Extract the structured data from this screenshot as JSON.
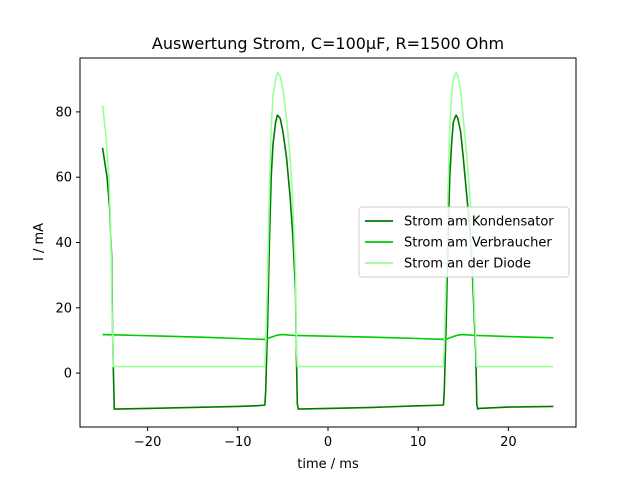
{
  "chart_data": {
    "type": "line",
    "title": "Auswertung Strom, C=100µF, R=1500 Ohm",
    "xlabel": "time / ms",
    "ylabel": "I / mA",
    "xlim": [
      -27.5,
      27.5
    ],
    "ylim": [
      -16.5,
      96.5
    ],
    "xticks": [
      -20,
      -10,
      0,
      10,
      20
    ],
    "yticks": [
      0,
      20,
      40,
      60,
      80
    ],
    "grid": false,
    "legend": "center-right",
    "series": [
      {
        "name": "Strom am Kondensator",
        "color": "#007a00",
        "x": [
          -25,
          -24.5,
          -24.2,
          -24.0,
          -23.9,
          -23.8,
          -23.7,
          -20,
          -15,
          -10,
          -8,
          -7.0,
          -6.9,
          -6.7,
          -6.5,
          -6.3,
          -6.1,
          -5.8,
          -5.6,
          -5.3,
          -5.0,
          -4.6,
          -4.2,
          -3.9,
          -3.6,
          -3.5,
          -3.4,
          -3.3,
          0,
          5,
          10,
          12.8,
          12.9,
          13.1,
          13.3,
          13.5,
          13.7,
          13.9,
          14.2,
          14.4,
          14.7,
          15.0,
          15.4,
          15.8,
          16.1,
          16.4,
          16.5,
          16.6,
          16.7,
          20,
          25
        ],
        "y": [
          69,
          60,
          50,
          36,
          15,
          1,
          -11,
          -10.8,
          -10.5,
          -10.2,
          -10.0,
          -9.8,
          -5,
          15,
          40,
          60,
          70,
          77,
          79,
          78,
          74,
          66,
          54,
          42,
          25,
          5,
          -9.5,
          -11,
          -10.8,
          -10.5,
          -10.0,
          -9.8,
          -5,
          15,
          40,
          60,
          70,
          77,
          79,
          78,
          74,
          66,
          54,
          42,
          25,
          5,
          -9.5,
          -11,
          -10.8,
          -10.4,
          -10.2
        ]
      },
      {
        "name": "Strom am Verbraucher",
        "color": "#00cc00",
        "x": [
          -25,
          -22,
          -18,
          -14,
          -10,
          -7,
          -6.5,
          -6,
          -5.5,
          -5,
          -4.5,
          -4,
          -3.5,
          -3,
          0,
          5,
          10,
          13,
          13.5,
          14,
          14.5,
          15,
          15.5,
          16,
          16.5,
          17,
          20,
          25
        ],
        "y": [
          11.8,
          11.6,
          11.3,
          11.0,
          10.6,
          10.3,
          10.8,
          11.3,
          11.7,
          11.8,
          11.7,
          11.6,
          11.5,
          11.5,
          11.3,
          11.0,
          10.6,
          10.3,
          10.8,
          11.3,
          11.7,
          11.8,
          11.7,
          11.6,
          11.5,
          11.5,
          11.2,
          10.8
        ]
      },
      {
        "name": "Strom an der Diode",
        "color": "#99ff99",
        "x": [
          -25,
          -24.6,
          -24.3,
          -24.1,
          -23.95,
          -23.8,
          -23.7,
          -20,
          -15,
          -10,
          -7.0,
          -6.9,
          -6.7,
          -6.5,
          -6.3,
          -6.1,
          -5.8,
          -5.6,
          -5.3,
          -5.0,
          -4.6,
          -4.2,
          -3.9,
          -3.6,
          -3.5,
          -3.4,
          -3.3,
          0,
          5,
          10,
          12.8,
          12.9,
          13.1,
          13.3,
          13.5,
          13.7,
          13.9,
          14.2,
          14.4,
          14.7,
          15.0,
          15.4,
          15.8,
          16.1,
          16.4,
          16.5,
          16.6,
          16.7,
          20,
          25
        ],
        "y": [
          82,
          72,
          60,
          45,
          20,
          2,
          2,
          2,
          2,
          2,
          2,
          8,
          30,
          55,
          75,
          85,
          90,
          92,
          91,
          87,
          78,
          66,
          52,
          30,
          8,
          2,
          2,
          2,
          2,
          2,
          2,
          8,
          30,
          55,
          75,
          85,
          90,
          92,
          91,
          87,
          78,
          66,
          52,
          30,
          8,
          2,
          2,
          2,
          2,
          2
        ]
      }
    ]
  }
}
